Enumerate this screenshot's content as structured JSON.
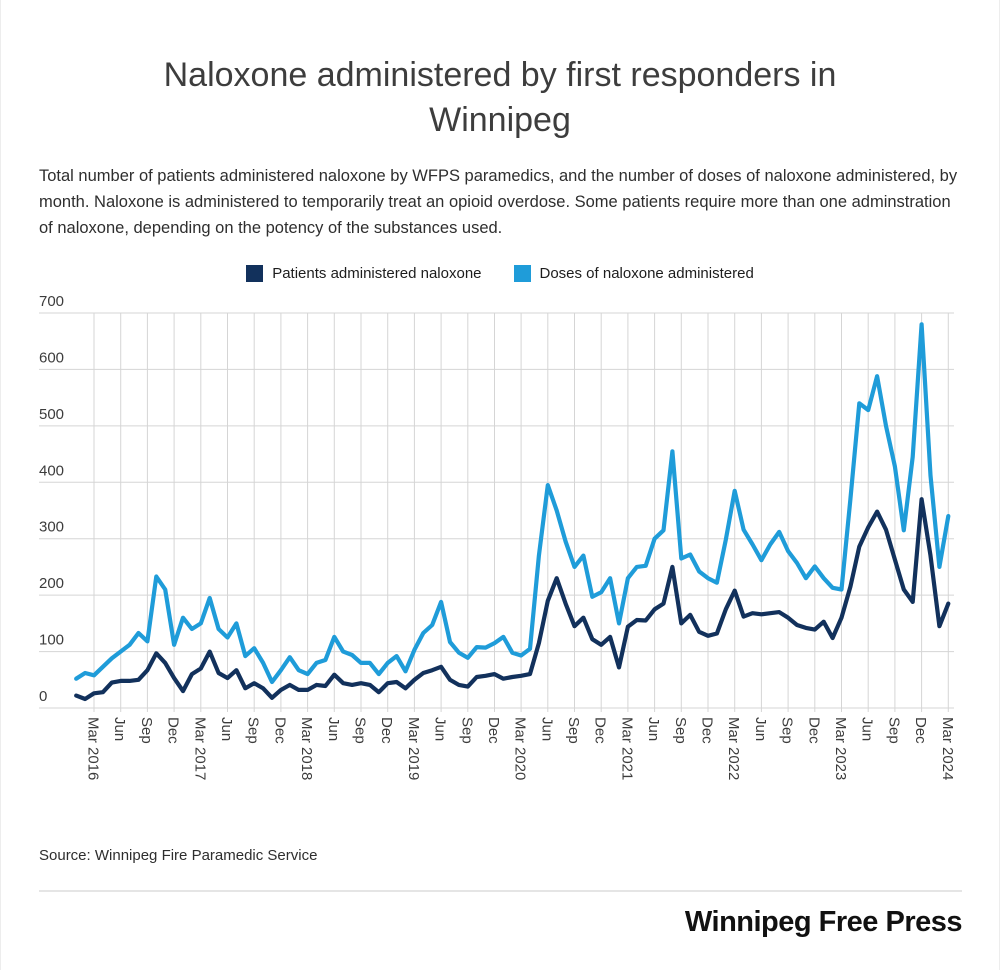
{
  "title": {
    "line1": "Naloxone administered by first responders in",
    "line2": "Winnipeg"
  },
  "subtitle": "Total number of patients administered naloxone by WFPS paramedics, and the number of doses of naloxone administered, by month.  Naloxone is administered to temporarily treat an opioid overdose. Some patients require more than one adminstration of naloxone, depending on the potency of the substances used.",
  "legend": [
    {
      "label": "Patients administered naloxone",
      "color": "#12315c"
    },
    {
      "label": "Doses of naloxone administered",
      "color": "#1f9cd9"
    }
  ],
  "source": "Source: Winnipeg Fire Paramedic Service",
  "logo": "Winnipeg Free Press",
  "chart_data": {
    "type": "line",
    "title": "Naloxone administered by first responders in Winnipeg",
    "xlabel": "",
    "ylabel": "",
    "ylim": [
      0,
      700
    ],
    "y_ticks": [
      0,
      100,
      200,
      300,
      400,
      500,
      600,
      700
    ],
    "grid": true,
    "legend_position": "top",
    "x_start": "Jan 2016",
    "x_end": "Mar 2024",
    "x_tick_labels": [
      "Mar 2016",
      "Jun",
      "Sep",
      "Dec",
      "Mar 2017",
      "Jun",
      "Sep",
      "Dec",
      "Mar 2018",
      "Jun",
      "Sep",
      "Dec",
      "Mar 2019",
      "Jun",
      "Sep",
      "Dec",
      "Mar 2020",
      "Jun",
      "Sep",
      "Dec",
      "Mar 2021",
      "Jun",
      "Sep",
      "Dec",
      "Mar 2022",
      "Jun",
      "Sep",
      "Dec",
      "Mar 2023",
      "Jun",
      "Sep",
      "Dec",
      "Mar 2024"
    ],
    "months": [
      "Jan 2016",
      "Feb 2016",
      "Mar 2016",
      "Apr 2016",
      "May 2016",
      "Jun 2016",
      "Jul 2016",
      "Aug 2016",
      "Sep 2016",
      "Oct 2016",
      "Nov 2016",
      "Dec 2016",
      "Jan 2017",
      "Feb 2017",
      "Mar 2017",
      "Apr 2017",
      "May 2017",
      "Jun 2017",
      "Jul 2017",
      "Aug 2017",
      "Sep 2017",
      "Oct 2017",
      "Nov 2017",
      "Dec 2017",
      "Jan 2018",
      "Feb 2018",
      "Mar 2018",
      "Apr 2018",
      "May 2018",
      "Jun 2018",
      "Jul 2018",
      "Aug 2018",
      "Sep 2018",
      "Oct 2018",
      "Nov 2018",
      "Dec 2018",
      "Jan 2019",
      "Feb 2019",
      "Mar 2019",
      "Apr 2019",
      "May 2019",
      "Jun 2019",
      "Jul 2019",
      "Aug 2019",
      "Sep 2019",
      "Oct 2019",
      "Nov 2019",
      "Dec 2019",
      "Jan 2020",
      "Feb 2020",
      "Mar 2020",
      "Apr 2020",
      "May 2020",
      "Jun 2020",
      "Jul 2020",
      "Aug 2020",
      "Sep 2020",
      "Oct 2020",
      "Nov 2020",
      "Dec 2020",
      "Jan 2021",
      "Feb 2021",
      "Mar 2021",
      "Apr 2021",
      "May 2021",
      "Jun 2021",
      "Jul 2021",
      "Aug 2021",
      "Sep 2021",
      "Oct 2021",
      "Nov 2021",
      "Dec 2021",
      "Jan 2022",
      "Feb 2022",
      "Mar 2022",
      "Apr 2022",
      "May 2022",
      "Jun 2022",
      "Jul 2022",
      "Aug 2022",
      "Sep 2022",
      "Oct 2022",
      "Nov 2022",
      "Dec 2022",
      "Jan 2023",
      "Feb 2023",
      "Mar 2023",
      "Apr 2023",
      "May 2023",
      "Jun 2023",
      "Jul 2023",
      "Aug 2023",
      "Sep 2023",
      "Oct 2023",
      "Nov 2023",
      "Dec 2023",
      "Jan 2024",
      "Feb 2024",
      "Mar 2024"
    ],
    "series": [
      {
        "name": "Patients administered naloxone",
        "color": "#12315c",
        "values": [
          22,
          16,
          26,
          28,
          45,
          48,
          48,
          50,
          67,
          97,
          80,
          53,
          30,
          60,
          70,
          100,
          62,
          53,
          67,
          35,
          44,
          35,
          18,
          32,
          41,
          32,
          32,
          41,
          39,
          59,
          44,
          41,
          44,
          41,
          28,
          44,
          46,
          35,
          50,
          62,
          67,
          73,
          50,
          41,
          38,
          55,
          57,
          60,
          52,
          55,
          57,
          60,
          115,
          190,
          230,
          185,
          145,
          160,
          122,
          112,
          126,
          72,
          144,
          156,
          155,
          175,
          185,
          250,
          150,
          165,
          135,
          128,
          132,
          175,
          208,
          162,
          168,
          166,
          168,
          170,
          160,
          147,
          142,
          139,
          153,
          124,
          160,
          215,
          286,
          320,
          348,
          316,
          263,
          210,
          188,
          370,
          270,
          145,
          185
        ]
      },
      {
        "name": "Doses of naloxone administered",
        "color": "#1f9cd9",
        "values": [
          52,
          62,
          58,
          73,
          88,
          100,
          112,
          133,
          118,
          233,
          210,
          112,
          160,
          140,
          150,
          195,
          140,
          125,
          150,
          92,
          106,
          80,
          46,
          67,
          90,
          67,
          60,
          80,
          85,
          126,
          100,
          94,
          80,
          80,
          60,
          80,
          92,
          65,
          103,
          133,
          147,
          188,
          117,
          98,
          89,
          108,
          107,
          115,
          126,
          98,
          93,
          105,
          270,
          395,
          350,
          295,
          250,
          270,
          197,
          205,
          230,
          150,
          230,
          250,
          252,
          300,
          315,
          455,
          265,
          272,
          242,
          230,
          222,
          298,
          385,
          316,
          290,
          262,
          290,
          312,
          278,
          257,
          230,
          251,
          230,
          213,
          210,
          370,
          540,
          528,
          588,
          500,
          428,
          315,
          445,
          680,
          412,
          250,
          340
        ]
      }
    ]
  }
}
